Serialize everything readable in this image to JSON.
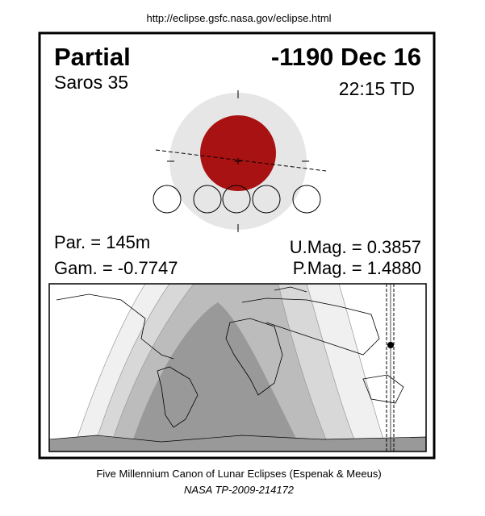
{
  "url": "http://eclipse.gsfc.nasa.gov/eclipse.html",
  "header": {
    "type": "Partial",
    "date": "-1190 Dec 16",
    "saros": "Saros  35",
    "time": "22:15 TD"
  },
  "params": {
    "par": "Par. = 145m",
    "gam": "Gam. = -0.7747",
    "umag": "U.Mag. = 0.3857",
    "pmag": "P.Mag. = 1.4880"
  },
  "footer": {
    "line1": "Five Millennium Canon of Lunar Eclipses (Espenak & Meeus)",
    "line2": "NASA TP-2009-214172"
  }
}
